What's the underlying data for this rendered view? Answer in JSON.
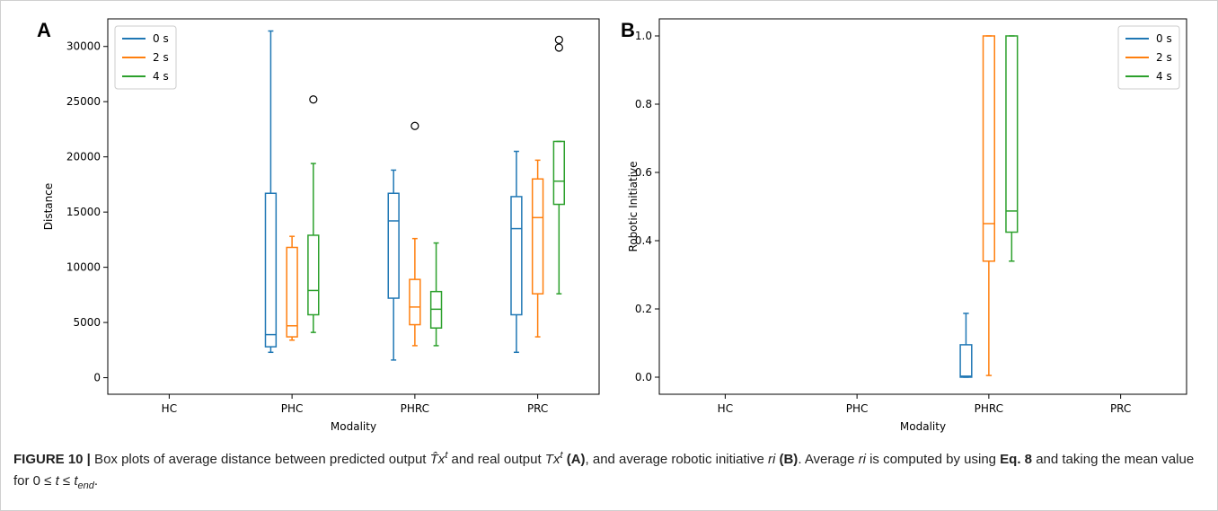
{
  "figure": {
    "caption": {
      "label": "FIGURE 10 |",
      "t1": " Box plots of average distance between predicted output ",
      "sym_that": "T̂x",
      "sup_t": "t",
      "t2": " and real output ",
      "sym_tx": "Tx",
      "t3": " ",
      "ref_a": "(A)",
      "t4": ", and average robotic initiative ",
      "sym_ri": "ri",
      "t5": " ",
      "ref_b": "(B)",
      "t6": ". Average ",
      "sym_ri2": "ri",
      "t7": " is computed by using ",
      "eq": "Eq. 8",
      "t8": " and taking the mean value for 0 ≤ ",
      "sym_t": "t",
      "t9": " ≤ ",
      "sym_tend": "t",
      "sub_end": "end",
      "t10": "."
    }
  },
  "chart_data": [
    {
      "type": "box",
      "panel_label": "A",
      "xlabel": "Modality",
      "ylabel": "Distance",
      "categories": [
        "HC",
        "PHC",
        "PHRC",
        "PRC"
      ],
      "ylim": [
        -1500,
        32500
      ],
      "yticks": [
        0,
        5000,
        10000,
        15000,
        20000,
        25000,
        30000
      ],
      "legend": {
        "position": "upper-left"
      },
      "series": [
        {
          "name": "0 s",
          "color": "#1f77b4",
          "boxes": [
            null,
            {
              "whislo": 2300,
              "q1": 2800,
              "med": 3900,
              "q3": 16700,
              "whishi": 31400,
              "fliers": []
            },
            {
              "whislo": 1600,
              "q1": 7200,
              "med": 14200,
              "q3": 16700,
              "whishi": 18800,
              "fliers": []
            },
            {
              "whislo": 2300,
              "q1": 5700,
              "med": 13500,
              "q3": 16400,
              "whishi": 20500,
              "fliers": []
            }
          ]
        },
        {
          "name": "2 s",
          "color": "#ff7f0e",
          "boxes": [
            null,
            {
              "whislo": 3400,
              "q1": 3700,
              "med": 4700,
              "q3": 11800,
              "whishi": 12800,
              "fliers": []
            },
            {
              "whislo": 2900,
              "q1": 4800,
              "med": 6400,
              "q3": 8900,
              "whishi": 12600,
              "fliers": [
                22800
              ]
            },
            {
              "whislo": 3700,
              "q1": 7600,
              "med": 14500,
              "q3": 18000,
              "whishi": 19700,
              "fliers": []
            }
          ]
        },
        {
          "name": "4 s",
          "color": "#2ca02c",
          "boxes": [
            null,
            {
              "whislo": 4100,
              "q1": 5700,
              "med": 7900,
              "q3": 12900,
              "whishi": 19400,
              "fliers": [
                25200
              ]
            },
            {
              "whislo": 2900,
              "q1": 4500,
              "med": 6200,
              "q3": 7800,
              "whishi": 12200,
              "fliers": []
            },
            {
              "whislo": 7600,
              "q1": 15700,
              "med": 17800,
              "q3": 21400,
              "whishi": 21400,
              "fliers": [
                29900,
                30600
              ]
            }
          ]
        }
      ]
    },
    {
      "type": "box",
      "panel_label": "B",
      "xlabel": "Modality",
      "ylabel": "Robotic Initiative",
      "categories": [
        "HC",
        "PHC",
        "PHRC",
        "PRC"
      ],
      "ylim": [
        -0.05,
        1.05
      ],
      "yticks": [
        0.0,
        0.2,
        0.4,
        0.6,
        0.8,
        1.0
      ],
      "legend": {
        "position": "upper-right"
      },
      "series": [
        {
          "name": "0 s",
          "color": "#1f77b4",
          "boxes": [
            null,
            null,
            {
              "whislo": 0.0,
              "q1": 0.0,
              "med": 0.003,
              "q3": 0.095,
              "whishi": 0.187,
              "fliers": []
            },
            null
          ]
        },
        {
          "name": "2 s",
          "color": "#ff7f0e",
          "boxes": [
            null,
            null,
            {
              "whislo": 0.005,
              "q1": 0.34,
              "med": 0.45,
              "q3": 1.0,
              "whishi": 1.0,
              "fliers": []
            },
            null
          ]
        },
        {
          "name": "4 s",
          "color": "#2ca02c",
          "boxes": [
            null,
            null,
            {
              "whislo": 0.34,
              "q1": 0.425,
              "med": 0.487,
              "q3": 1.0,
              "whishi": 1.0,
              "fliers": []
            },
            null
          ]
        }
      ]
    }
  ]
}
